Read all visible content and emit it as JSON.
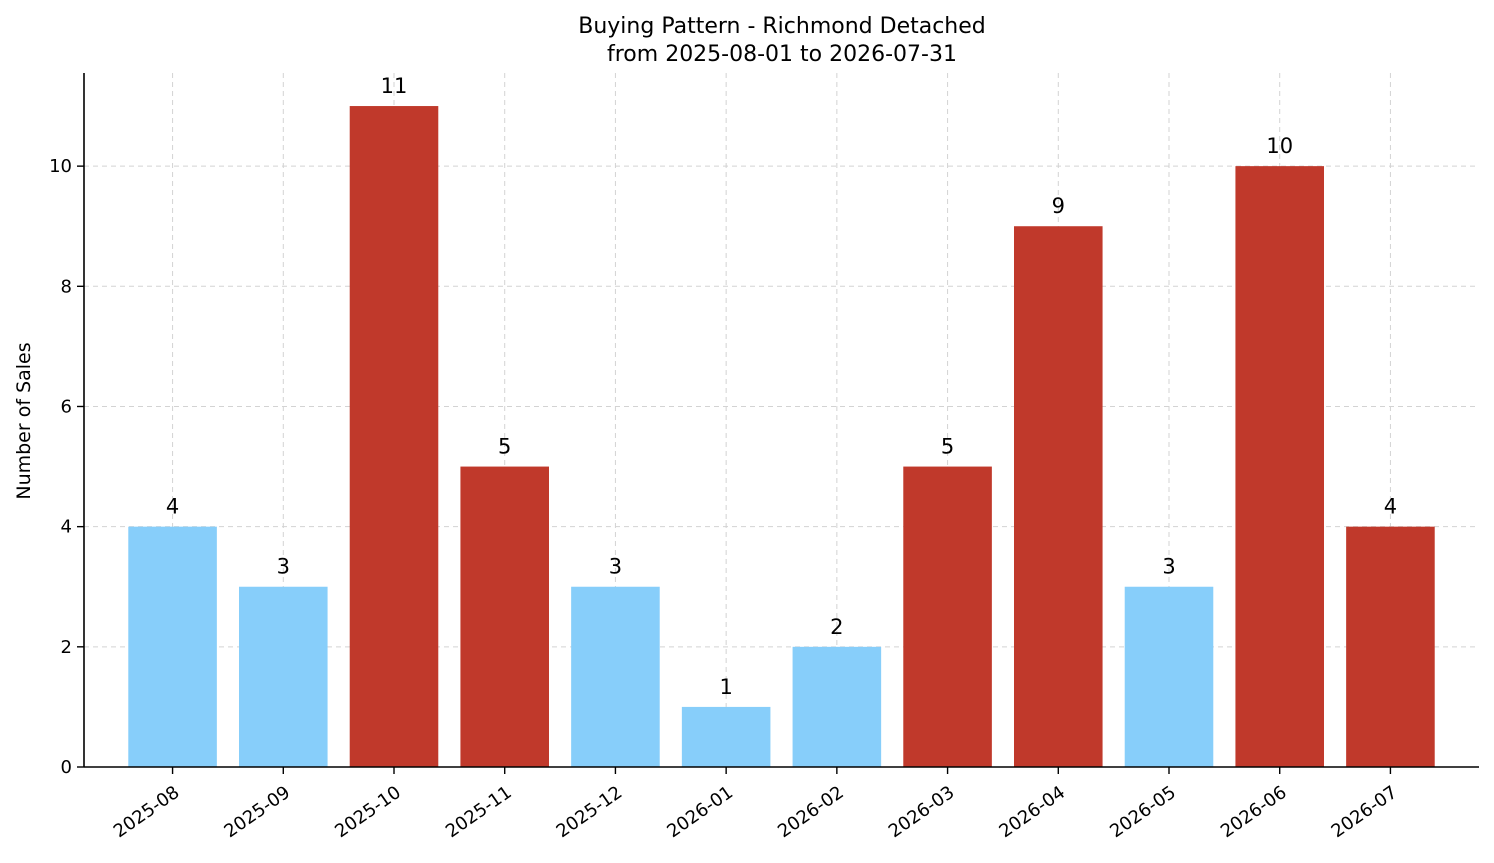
{
  "chart_data": {
    "type": "bar",
    "title": "Buying Pattern - Richmond Detached",
    "subtitle": "from 2025-08-01 to 2026-07-31",
    "xlabel": "",
    "ylabel": "Number of Sales",
    "categories": [
      "2025-08",
      "2025-09",
      "2025-10",
      "2025-11",
      "2025-12",
      "2026-01",
      "2026-02",
      "2026-03",
      "2026-04",
      "2026-05",
      "2026-06",
      "2026-07"
    ],
    "values": [
      4,
      3,
      11,
      5,
      3,
      1,
      2,
      5,
      9,
      3,
      10,
      4
    ],
    "bar_colors": [
      "#87CEFA",
      "#87CEFA",
      "#C0392B",
      "#C0392B",
      "#87CEFA",
      "#87CEFA",
      "#87CEFA",
      "#C0392B",
      "#C0392B",
      "#87CEFA",
      "#C0392B",
      "#C0392B"
    ],
    "ylim": [
      0,
      11.55
    ],
    "yticks": [
      0,
      2,
      4,
      6,
      8,
      10
    ],
    "grid": true,
    "legend": "none"
  }
}
